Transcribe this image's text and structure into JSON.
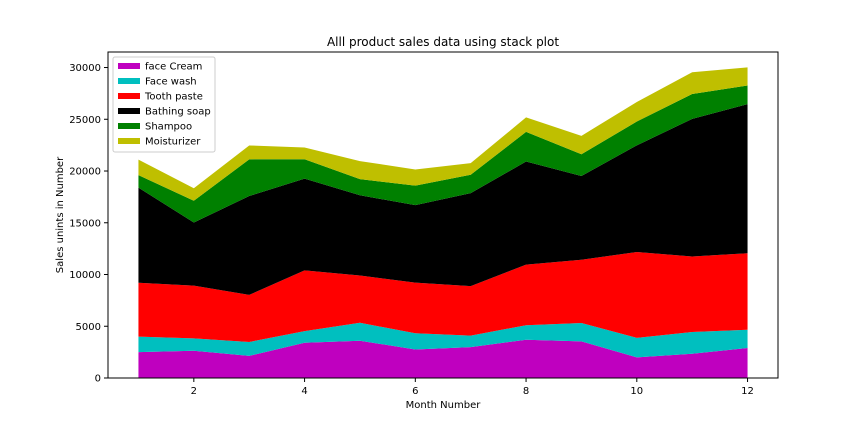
{
  "chart_data": {
    "type": "area",
    "stacked": true,
    "title": "Alll product sales data using stack plot",
    "xlabel": "Month Number",
    "ylabel": "Sales unints in Number",
    "x": [
      1,
      2,
      3,
      4,
      5,
      6,
      7,
      8,
      9,
      10,
      11,
      12
    ],
    "xlim": [
      0.45,
      12.55
    ],
    "ylim": [
      0,
      31500
    ],
    "xticks": [
      2,
      4,
      6,
      8,
      10,
      12
    ],
    "yticks": [
      0,
      5000,
      10000,
      15000,
      20000,
      25000,
      30000
    ],
    "grid": false,
    "legend_position": "upper left",
    "series": [
      {
        "name": "face Cream",
        "color": "#bf00bf",
        "values": [
          2500,
          2630,
          2140,
          3400,
          3600,
          2760,
          2980,
          3700,
          3540,
          1990,
          2340,
          2900
        ]
      },
      {
        "name": "Face wash",
        "color": "#00bfbf",
        "values": [
          1500,
          1200,
          1340,
          1130,
          1740,
          1560,
          1120,
          1400,
          1780,
          1890,
          2100,
          1760
        ]
      },
      {
        "name": "Tooth paste",
        "color": "#ff0000",
        "values": [
          5200,
          5100,
          4550,
          5870,
          4560,
          4890,
          4780,
          5860,
          6100,
          8300,
          7300,
          7400
        ]
      },
      {
        "name": "Bathing soap",
        "color": "#000000",
        "values": [
          9200,
          6100,
          9550,
          8870,
          7760,
          7490,
          8980,
          9960,
          8100,
          10300,
          13300,
          14400
        ]
      },
      {
        "name": "Shampoo",
        "color": "#008000",
        "values": [
          1200,
          2100,
          3550,
          1870,
          1560,
          1890,
          1780,
          2860,
          2100,
          2300,
          2400,
          1800
        ]
      },
      {
        "name": "Moisturizer",
        "color": "#bfbf00",
        "values": [
          1500,
          1200,
          1340,
          1130,
          1740,
          1560,
          1120,
          1400,
          1780,
          1890,
          2100,
          1760
        ]
      }
    ]
  }
}
